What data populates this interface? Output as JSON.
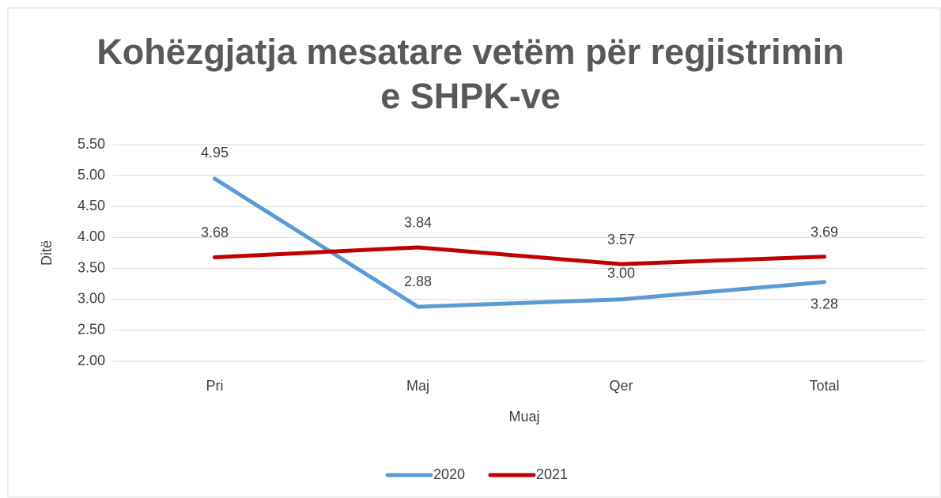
{
  "chart_data": {
    "type": "line",
    "title": "Kohëzgjatja mesatare vetëm për regjistrimin e SHPK-ve",
    "x_label": "Muaj",
    "y_label": "Ditë",
    "categories": [
      "Pri",
      "Maj",
      "Qer",
      "Total"
    ],
    "series": [
      {
        "name": "2020",
        "color": "#5b9bd5",
        "values": [
          4.95,
          2.88,
          3.0,
          3.28
        ],
        "value_labels": [
          "4.95",
          "2.88",
          "3.00",
          "3.28"
        ]
      },
      {
        "name": "2021",
        "color": "#c00000",
        "values": [
          3.68,
          3.84,
          3.57,
          3.69
        ],
        "value_labels": [
          "3.68",
          "3.84",
          "3.57",
          "3.69"
        ]
      }
    ],
    "ylim": [
      2,
      5.5
    ],
    "yticks": [
      {
        "value": 2,
        "label": "2.00"
      },
      {
        "value": 2.5,
        "label": "2.50"
      },
      {
        "value": 3,
        "label": "3.00"
      },
      {
        "value": 3.5,
        "label": "3.50"
      },
      {
        "value": 4,
        "label": "4.00"
      },
      {
        "value": 4.5,
        "label": "4.50"
      },
      {
        "value": 5,
        "label": "5.00"
      },
      {
        "value": 5.5,
        "label": "5.50"
      }
    ],
    "grid": true,
    "legend": "bottom"
  }
}
